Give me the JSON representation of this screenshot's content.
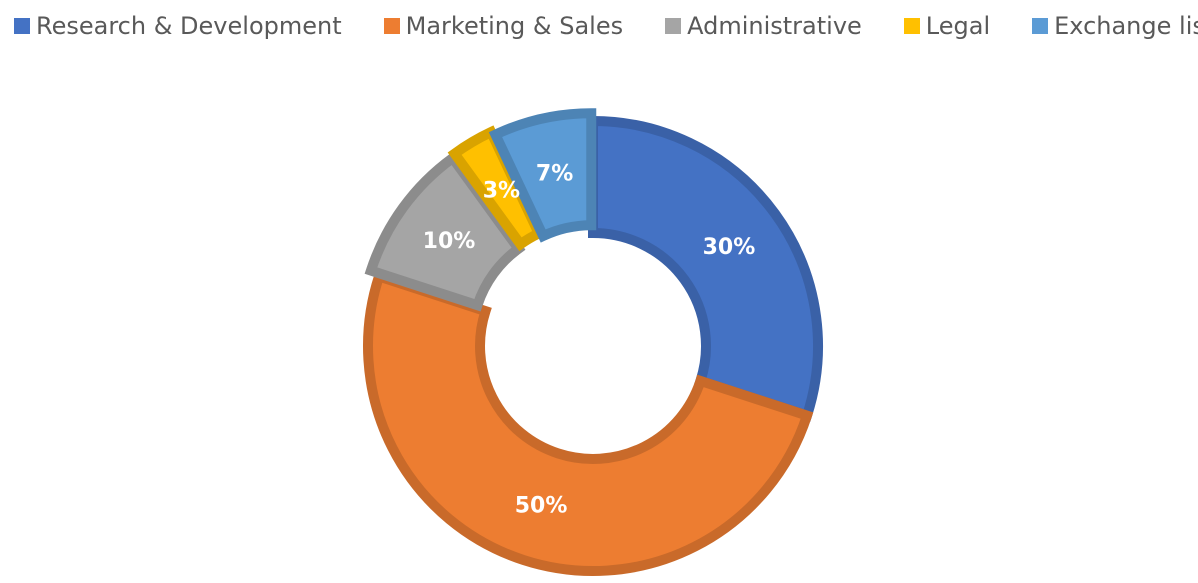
{
  "chart_data": {
    "type": "pie",
    "variant": "donut",
    "categories": [
      "Research & Development",
      "Marketing & Sales",
      "Administrative",
      "Legal",
      "Exchange listing"
    ],
    "values": [
      30,
      50,
      10,
      3,
      7
    ],
    "data_labels": [
      "30%",
      "50%",
      "10%",
      "3%",
      "7%"
    ],
    "colors": [
      "#4472C4",
      "#ED7D31",
      "#A5A5A5",
      "#FFC000",
      "#5B9BD5"
    ],
    "legend_position": "top",
    "title": ""
  }
}
